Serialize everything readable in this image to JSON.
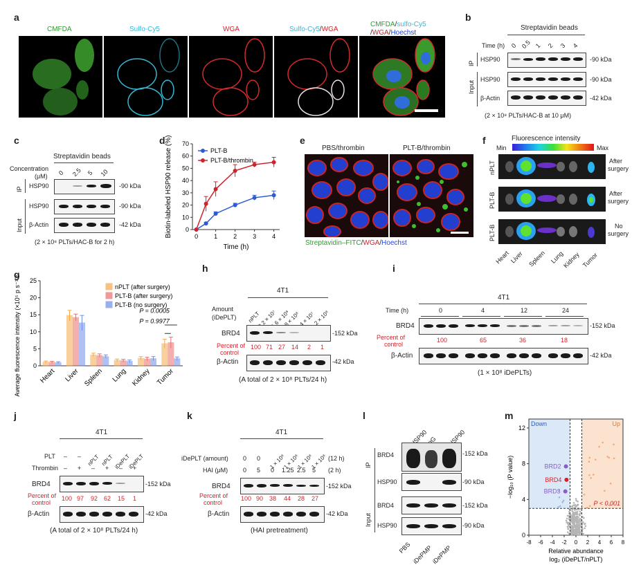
{
  "panel_a": {
    "letter": "a",
    "channels": [
      "CMFDA",
      "Sulfo-Cy5",
      "WGA"
    ],
    "merge1": {
      "part1": "Sulfo-Cy5",
      "sep": "/",
      "part2": "WGA"
    },
    "merge2": {
      "part1": "CMFDA",
      "sep1": "/",
      "part2": "sulfo-Cy5",
      "sep2": "/",
      "part3": "WGA",
      "sep3": "/",
      "part4": "Hoechst"
    }
  },
  "panel_b": {
    "letter": "b",
    "header": "Streptavidin beads",
    "time_label": "Time (h)",
    "times": [
      "0",
      "0.5",
      "1",
      "2",
      "3",
      "4"
    ],
    "ip_label": "IP",
    "input_label": "Input",
    "rows": [
      {
        "name": "HSP90",
        "kda": "-90 kDa"
      },
      {
        "name": "HSP90",
        "kda": "-90 kDa"
      },
      {
        "name": "β-Actin",
        "kda": "-42 kDa"
      }
    ],
    "caption": "(2 × 10⁸ PLTs/HAC-B at 10 μM)"
  },
  "panel_c": {
    "letter": "c",
    "header": "Streptavidin beads",
    "conc_label": "Concentration",
    "conc_unit": "(μM)",
    "concs": [
      "0",
      "2.5",
      "5",
      "10"
    ],
    "ip_label": "IP",
    "input_label": "Input",
    "rows": [
      {
        "name": "HSP90",
        "kda": "-90 kDa"
      },
      {
        "name": "HSP90",
        "kda": "-90 kDa"
      },
      {
        "name": "β-Actin",
        "kda": "-42 kDa"
      }
    ],
    "caption": "(2 × 10⁸ PLTs/HAC-B for 2 h)"
  },
  "panel_d": {
    "letter": "d"
  },
  "panel_e": {
    "letter": "e",
    "titles": [
      "PBS/thrombin",
      "PLT-B/thrombin"
    ],
    "caption": {
      "part1": "Streptavidin–FITC",
      "sep1": "/",
      "part2": "WGA",
      "sep2": "/",
      "part3": "Hoechst"
    }
  },
  "panel_f": {
    "letter": "f",
    "title": "Fluorescence intensity",
    "min": "Min",
    "max": "Max",
    "rows": [
      {
        "name": "nPLT",
        "note1": "After",
        "note2": "surgery"
      },
      {
        "name": "PLT-B",
        "note1": "After",
        "note2": "surgery"
      },
      {
        "name": "PLT-B",
        "note1": "No",
        "note2": "surgery"
      }
    ],
    "organs": [
      "Heart",
      "Liver",
      "Spleen",
      "Lung",
      "Kidney",
      "Tumor"
    ]
  },
  "panel_g": {
    "letter": "g"
  },
  "panel_h": {
    "letter": "h",
    "cell": "4T1",
    "amount_label": "Amount",
    "amount_unit": "(iDePLT)",
    "amounts": [
      "nPLT",
      "3.2 × 10⁷",
      "1.6 × 10⁸",
      "8 × 10⁸",
      "4 × 10⁷",
      "2 × 10⁸"
    ],
    "row1": "BRD4",
    "row1_kda": "-152 kDa",
    "pct_label1": "Percent of",
    "pct_label2": "control",
    "pcts": [
      "100",
      "71",
      "27",
      "14",
      "2",
      "1"
    ],
    "row2": "β-Actin",
    "row2_kda": "-42 kDa",
    "caption": "(A total of 2 × 10⁸ PLTs/24 h)"
  },
  "panel_i": {
    "letter": "i",
    "cell": "4T1",
    "time_label": "Time (h)",
    "times": [
      "0",
      "4",
      "12",
      "24"
    ],
    "row1": "BRD4",
    "row1_kda": "-152 kDa",
    "pct_label1": "Percent of",
    "pct_label2": "control",
    "pcts": [
      "100",
      "65",
      "36",
      "18"
    ],
    "row2": "β-Actin",
    "row2_kda": "-42 kDa",
    "caption": "(1 × 10⁸ iDePLTs)"
  },
  "panel_j": {
    "letter": "j",
    "cell": "4T1",
    "plt_label": "PLT",
    "thr_label": "Thrombin",
    "plt": [
      "–",
      "–",
      "nPLT",
      "nPLT",
      "iDePLT",
      "iDePLT"
    ],
    "thr": [
      "–",
      "+",
      "–",
      "+",
      "–",
      "+"
    ],
    "row1": "BRD4",
    "row1_kda": "-152 kDa",
    "pct_label1": "Percent of",
    "pct_label2": "control",
    "pcts": [
      "100",
      "97",
      "92",
      "62",
      "15",
      "1"
    ],
    "row2": "β-Actin",
    "row2_kda": "-42 kDa",
    "caption": "(A total of 2 × 10⁸ PLTs/24 h)"
  },
  "panel_k": {
    "letter": "k",
    "cell": "4T1",
    "amount_label": "iDePLT (amount)",
    "hai_label": "HAI (μM)",
    "amounts": [
      "0",
      "0",
      "1 × 10⁸",
      "1 × 10⁸",
      "1 × 10⁸",
      "1 × 10⁸"
    ],
    "hai": [
      "0",
      "5",
      "0",
      "1.25",
      "2.5",
      "5"
    ],
    "time1": "(12 h)",
    "time2": "(2 h)",
    "row1": "BRD4",
    "row1_kda": "-152 kDa",
    "pct_label1": "Percent of",
    "pct_label2": "control",
    "pcts": [
      "100",
      "90",
      "38",
      "44",
      "28",
      "27"
    ],
    "row2": "β-Actin",
    "row2_kda": "-42 kDa",
    "caption": "(HAI pretreatment)"
  },
  "panel_l": {
    "letter": "l",
    "cols": [
      "Anti-HSP90",
      "IgG",
      "Anti-HSP90"
    ],
    "ip_label": "IP",
    "input_label": "Input",
    "rows": [
      {
        "name": "BRD4",
        "kda": "-152 kDa"
      },
      {
        "name": "HSP90",
        "kda": "-90 kDa"
      },
      {
        "name": "BRD4",
        "kda": "-152 kDa"
      },
      {
        "name": "HSP90",
        "kda": "-90 kDa"
      }
    ],
    "bottom": [
      "PBS",
      "iDePMP",
      "iDePMP"
    ]
  },
  "panel_m": {
    "letter": "m"
  },
  "chart_data": [
    {
      "id": "d",
      "type": "line",
      "xlabel": "Time (h)",
      "ylabel": "Biotin-labeled HSP90 release (%)",
      "xlim": [
        -0.2,
        4.3
      ],
      "ylim": [
        0,
        70
      ],
      "xticks": [
        0,
        1,
        2,
        3,
        4
      ],
      "yticks": [
        0,
        10,
        20,
        30,
        40,
        50,
        60,
        70
      ],
      "legend": "top-left",
      "series": [
        {
          "name": "PLT-B",
          "color": "#2b5bd6",
          "x": [
            0,
            0.5,
            1,
            2,
            3,
            4
          ],
          "y": [
            0,
            5,
            13,
            20,
            26,
            28
          ],
          "err": [
            0,
            1,
            1.5,
            1.5,
            2,
            3.5
          ]
        },
        {
          "name": "PLT-B/thrombin",
          "color": "#d0222a",
          "x": [
            0,
            0.5,
            1,
            2,
            3,
            4
          ],
          "y": [
            0,
            21,
            33,
            48,
            53,
            55
          ],
          "err": [
            0,
            6,
            6,
            5,
            2,
            4
          ]
        }
      ]
    },
    {
      "id": "g",
      "type": "bar",
      "ylabel": "Average fluorescence intensity (×10⁵ p s⁻¹ cm⁻² sr⁻¹)",
      "ylim": [
        0,
        25
      ],
      "yticks": [
        0,
        5,
        10,
        15,
        20,
        25
      ],
      "categories": [
        "Heart",
        "Liver",
        "Spleen",
        "Lung",
        "Kidney",
        "Tumor"
      ],
      "legend": "top-right",
      "series": [
        {
          "name": "nPLT (after surgery)",
          "color": "#f5a94a",
          "values": [
            1.1,
            14.8,
            3.2,
            1.6,
            2.2,
            6.5
          ],
          "err": [
            0.3,
            1.5,
            0.5,
            0.4,
            0.5,
            1.3
          ]
        },
        {
          "name": "PLT-B (after surgery)",
          "color": "#ec6e6e",
          "values": [
            1.0,
            14.2,
            3.0,
            1.5,
            2.0,
            6.8
          ],
          "err": [
            0.3,
            1.0,
            0.5,
            0.4,
            0.5,
            1.6
          ]
        },
        {
          "name": "PLT-B (no surgery)",
          "color": "#6f8fe8",
          "values": [
            0.9,
            12.6,
            2.7,
            1.3,
            2.1,
            2.1
          ],
          "err": [
            0.3,
            2.2,
            0.5,
            0.4,
            0.6,
            0.5
          ]
        }
      ],
      "annotations": [
        "P = 0.0005",
        "P = 0.9977"
      ]
    },
    {
      "id": "m",
      "type": "scatter",
      "xlabel": "Relative abundance log₂ (iDePLT/nPLT)",
      "ylabel": "−log₁₀ (P value)",
      "xlim": [
        -8,
        8
      ],
      "ylim": [
        0,
        13
      ],
      "xticks": [
        -8,
        -6,
        -4,
        -2,
        0,
        2,
        4,
        6,
        8
      ],
      "yticks": [
        0,
        4,
        8,
        12
      ],
      "regions": [
        "Down",
        "Up"
      ],
      "threshold_label": "P < 0.001",
      "highlight": [
        {
          "name": "BRD2",
          "x": -1.7,
          "y": 7.7,
          "color": "#8a5ccc"
        },
        {
          "name": "BRD4",
          "x": -1.6,
          "y": 6.2,
          "color": "#d0222a"
        },
        {
          "name": "BRD3",
          "x": -1.8,
          "y": 4.9,
          "color": "#8a5ccc"
        }
      ]
    }
  ]
}
